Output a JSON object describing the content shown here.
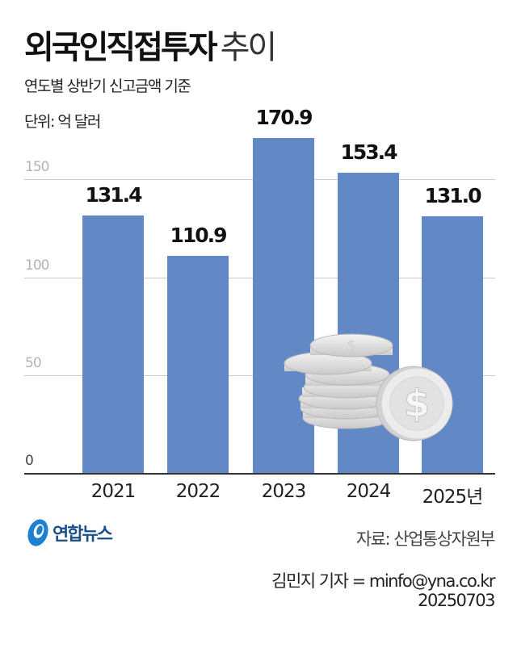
{
  "header": {
    "title_bold": "외국인직접투자",
    "title_light": "추이",
    "subtitle": "연도별 상반기 신고금액 기준",
    "unit": "단위: 억 달러"
  },
  "chart_data": {
    "type": "bar",
    "title": "외국인직접투자 추이",
    "subtitle": "연도별 상반기 신고금액 기준",
    "unit": "억 달러",
    "categories": [
      "2021",
      "2022",
      "2023",
      "2024",
      "2025년"
    ],
    "values": [
      131.4,
      110.9,
      170.9,
      153.4,
      131.0
    ],
    "value_labels": [
      "131.4",
      "110.9",
      "170.9",
      "153.4",
      "131.0"
    ],
    "xlabel": "",
    "ylabel": "억 달러",
    "yticks": [
      "0",
      "50",
      "100",
      "150"
    ],
    "ylim": [
      0,
      150
    ],
    "grid": true,
    "legend": null,
    "bar_color": "#6288c6",
    "decoration": "stack of silver dollar coins"
  },
  "footer": {
    "logo_text": "연합뉴스",
    "source": "자료: 산업통상자원부",
    "reporter": "김민지 기자 = minfo@yna.co.kr",
    "date": "20250703"
  }
}
